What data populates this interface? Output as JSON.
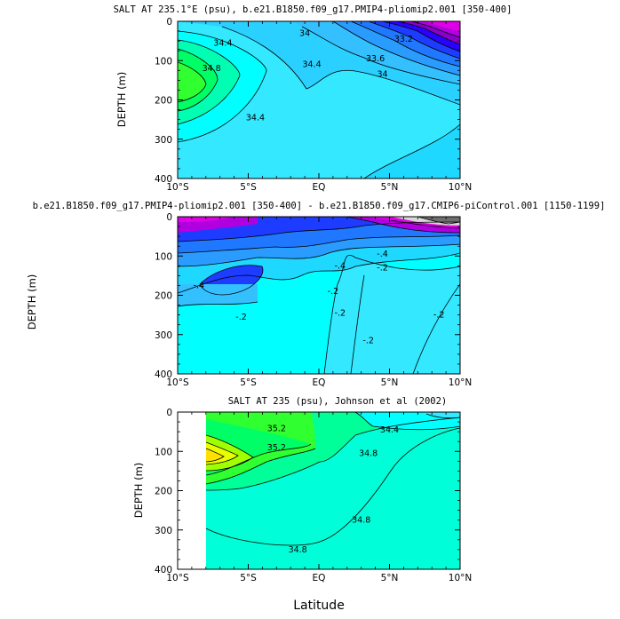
{
  "chart_data": [
    {
      "type": "contour",
      "title": "SALT AT 235.1°E (psu), b.e21.B1850.f09_g17.PMIP4-pliomip2.001 [350-400]",
      "ylabel": "DEPTH (m)",
      "xlabel": "",
      "xlim": [
        "10°S",
        "10°N"
      ],
      "ylim": [
        0,
        400
      ],
      "x_ticks": [
        "10°S",
        "5°S",
        "EQ",
        "5°N",
        "10°N"
      ],
      "y_ticks": [
        0,
        100,
        200,
        300,
        400
      ],
      "contour_labels": [
        {
          "text": "34.4",
          "lat": -6.8,
          "depth": 55
        },
        {
          "text": "34",
          "lat": -1.0,
          "depth": 30
        },
        {
          "text": "34.8",
          "lat": -7.6,
          "depth": 120
        },
        {
          "text": "34.4",
          "lat": -4.5,
          "depth": 245
        },
        {
          "text": "34.4",
          "lat": -0.5,
          "depth": 110
        },
        {
          "text": "33.6",
          "lat": 4.0,
          "depth": 95
        },
        {
          "text": "34",
          "lat": 4.5,
          "depth": 135
        },
        {
          "text": "33.2",
          "lat": 6.0,
          "depth": 45
        }
      ],
      "colors": [
        "#8b00c8",
        "#b000e0",
        "#e000e6",
        "#2a00ff",
        "#1e3cff",
        "#1f78ff",
        "#2a9cff",
        "#34c0ff",
        "#1fd8ff",
        "#33e8ff",
        "#00ffff",
        "#00ffb3",
        "#00ff66",
        "#30ff30"
      ]
    },
    {
      "type": "contour",
      "title": "b.e21.B1850.f09_g17.PMIP4-pliomip2.001 [350-400] - b.e21.B1850.f09_g17.CMIP6-piControl.001 [1150-1199]",
      "ylabel": "DEPTH (m)",
      "xlabel": "",
      "xlim": [
        "10°S",
        "10°N"
      ],
      "ylim": [
        0,
        400
      ],
      "x_ticks": [
        "10°S",
        "5°S",
        "EQ",
        "5°N",
        "10°N"
      ],
      "y_ticks": [
        0,
        100,
        200,
        300,
        400
      ],
      "contour_labels": [
        {
          "text": "-.4",
          "lat": 1.5,
          "depth": 125
        },
        {
          "text": "-.4",
          "lat": -8.5,
          "depth": 175
        },
        {
          "text": "-.2",
          "lat": -5.5,
          "depth": 255
        },
        {
          "text": "-.2",
          "lat": 1.0,
          "depth": 190
        },
        {
          "text": "-.2",
          "lat": 1.5,
          "depth": 245
        },
        {
          "text": "-.2",
          "lat": 3.5,
          "depth": 315
        },
        {
          "text": "-.2",
          "lat": 8.5,
          "depth": 250
        },
        {
          "text": "-.4",
          "lat": 4.5,
          "depth": 95
        },
        {
          "text": "-.2",
          "lat": 4.5,
          "depth": 130
        }
      ]
    },
    {
      "type": "contour",
      "title": "SALT AT 235 (psu), Johnson et al (2002)",
      "ylabel": "DEPTH (m)",
      "xlabel": "Latitude",
      "xlim": [
        "10°S",
        "10°N"
      ],
      "ylim": [
        0,
        400
      ],
      "x_ticks": [
        "10°S",
        "5°S",
        "EQ",
        "5°N",
        "10°N"
      ],
      "y_ticks": [
        0,
        100,
        200,
        300,
        400
      ],
      "data_start_lat": -8,
      "contour_labels": [
        {
          "text": "35.2",
          "lat": -3.0,
          "depth": 42
        },
        {
          "text": "35.2",
          "lat": -3.0,
          "depth": 90
        },
        {
          "text": "34.8",
          "lat": 3.5,
          "depth": 105
        },
        {
          "text": "34.8",
          "lat": 3.0,
          "depth": 275
        },
        {
          "text": "34.8",
          "lat": -1.5,
          "depth": 350
        },
        {
          "text": "34.4",
          "lat": 5.0,
          "depth": 45
        }
      ]
    }
  ],
  "figure_left_label": "DEPTH (m)"
}
